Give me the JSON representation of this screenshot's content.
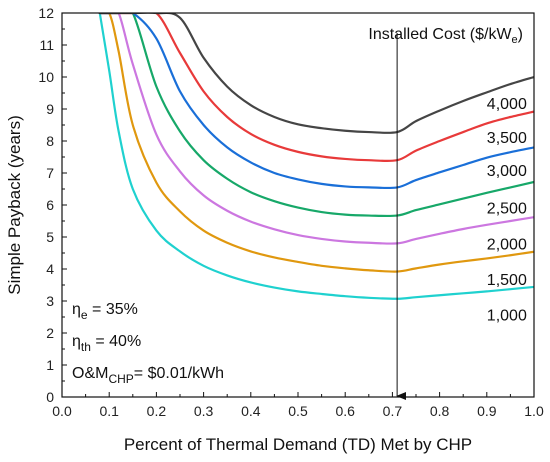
{
  "chart_data": {
    "type": "line",
    "xlabel": "Percent of Thermal Demand (TD) Met by CHP",
    "ylabel": "Simple Payback (years)",
    "xlim": [
      0.0,
      1.0
    ],
    "ylim": [
      0,
      12
    ],
    "x_ticks": [
      "0.0",
      "0.1",
      "0.2",
      "0.3",
      "0.4",
      "0.5",
      "0.6",
      "0.7",
      "0.8",
      "0.9",
      "1.0"
    ],
    "y_ticks": [
      "0",
      "1",
      "2",
      "3",
      "4",
      "5",
      "6",
      "7",
      "8",
      "9",
      "10",
      "11",
      "12"
    ],
    "grid": false,
    "legend_title": {
      "text": "Installed Cost ($/kW",
      "sub": "e",
      "suffix": ")"
    },
    "marker_line_x": 0.71,
    "x": [
      0.08,
      0.1,
      0.12,
      0.15,
      0.2,
      0.25,
      0.3,
      0.35,
      0.4,
      0.45,
      0.5,
      0.55,
      0.6,
      0.65,
      0.71,
      0.75,
      0.8,
      0.85,
      0.9,
      0.95,
      1.0
    ],
    "series": [
      {
        "name": "1,000",
        "color": "#1fd1cf",
        "values": [
          12.0,
          10.2,
          8.3,
          6.5,
          5.2,
          4.55,
          4.1,
          3.8,
          3.58,
          3.42,
          3.3,
          3.22,
          3.15,
          3.1,
          3.07,
          3.12,
          3.18,
          3.24,
          3.3,
          3.37,
          3.44
        ]
      },
      {
        "name": "1,500",
        "color": "#e0980f",
        "values": [
          12.0,
          12.0,
          10.8,
          8.5,
          6.7,
          5.8,
          5.2,
          4.82,
          4.55,
          4.36,
          4.22,
          4.1,
          4.02,
          3.96,
          3.92,
          4.02,
          4.14,
          4.24,
          4.33,
          4.43,
          4.54
        ]
      },
      {
        "name": "2,000",
        "color": "#cc77e0",
        "values": [
          12.0,
          12.0,
          12.0,
          10.4,
          8.2,
          7.05,
          6.3,
          5.82,
          5.48,
          5.24,
          5.06,
          4.94,
          4.86,
          4.82,
          4.8,
          4.94,
          5.1,
          5.25,
          5.38,
          5.5,
          5.62
        ]
      },
      {
        "name": "2,500",
        "color": "#17a869",
        "values": [
          12.0,
          12.0,
          12.0,
          12.0,
          9.7,
          8.3,
          7.4,
          6.82,
          6.4,
          6.12,
          5.92,
          5.78,
          5.7,
          5.67,
          5.67,
          5.84,
          6.02,
          6.2,
          6.38,
          6.55,
          6.72
        ]
      },
      {
        "name": "3,000",
        "color": "#1a6fd8",
        "values": [
          12.0,
          12.0,
          12.0,
          12.0,
          11.2,
          9.55,
          8.5,
          7.8,
          7.33,
          7.0,
          6.8,
          6.66,
          6.58,
          6.55,
          6.55,
          6.78,
          7.02,
          7.25,
          7.48,
          7.65,
          7.8
        ]
      },
      {
        "name": "3,500",
        "color": "#e83a3a",
        "values": [
          12.0,
          12.0,
          12.0,
          12.0,
          12.0,
          10.75,
          9.55,
          8.75,
          8.22,
          7.88,
          7.66,
          7.52,
          7.44,
          7.4,
          7.4,
          7.7,
          8.0,
          8.28,
          8.55,
          8.75,
          8.92
        ]
      },
      {
        "name": "4,000",
        "color": "#454545",
        "values": [
          12.0,
          12.0,
          12.0,
          12.0,
          12.0,
          11.85,
          10.6,
          9.7,
          9.12,
          8.75,
          8.52,
          8.4,
          8.32,
          8.28,
          8.28,
          8.62,
          8.95,
          9.25,
          9.52,
          9.78,
          10.0
        ]
      }
    ],
    "series_labels": [
      {
        "text": "4,000",
        "x": 0.9,
        "y": 9.18
      },
      {
        "text": "3,500",
        "x": 0.9,
        "y": 8.12
      },
      {
        "text": "3,000",
        "x": 0.9,
        "y": 7.1
      },
      {
        "text": "2,500",
        "x": 0.9,
        "y": 5.92
      },
      {
        "text": "2,000",
        "x": 0.9,
        "y": 4.8
      },
      {
        "text": "1,500",
        "x": 0.9,
        "y": 3.68
      },
      {
        "text": "1,000",
        "x": 0.9,
        "y": 2.58
      }
    ],
    "annotations": {
      "eta_e": {
        "main": "η",
        "sub": "e",
        "rest": " = 35%"
      },
      "eta_th": {
        "main": "η",
        "sub": "th",
        "rest": " = 40%"
      },
      "om": {
        "main": "O&M",
        "sub": "CHP",
        "rest": "= $0.01/kWh"
      }
    }
  }
}
